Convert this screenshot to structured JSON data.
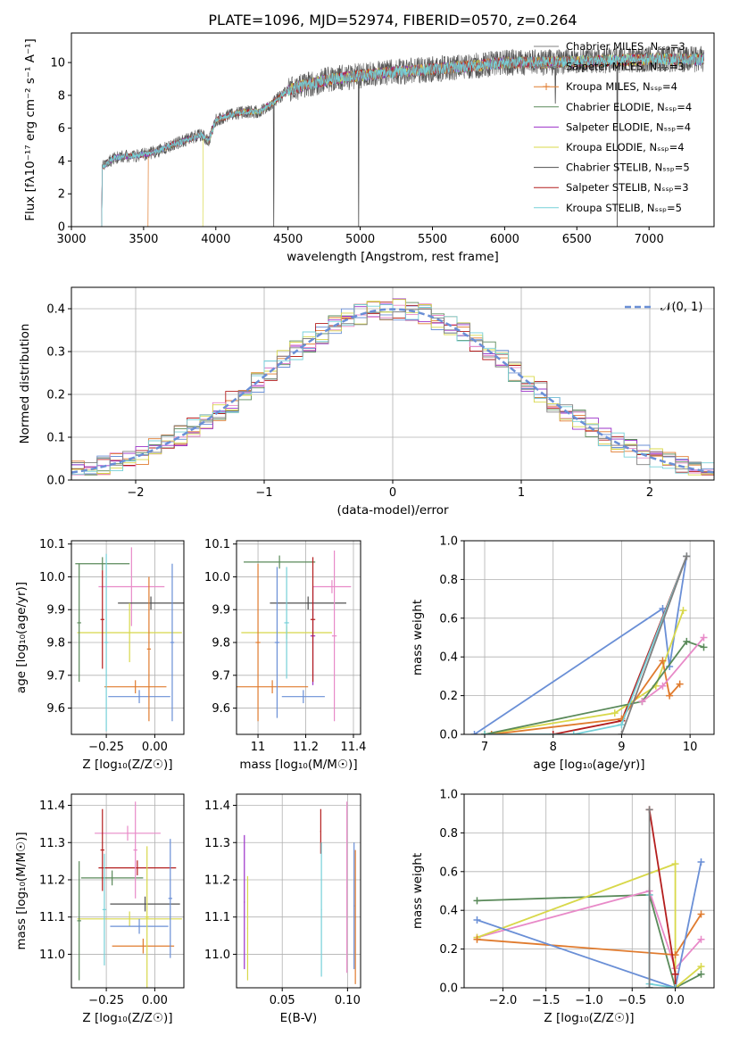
{
  "chart_data": [
    {
      "id": "spectrum",
      "type": "line",
      "title": "PLATE=1096, MJD=52974, FIBERID=0570, z=0.264",
      "xlabel": "wavelength [Angstrom, rest frame]",
      "ylabel": "Flux [fλ10⁻¹⁷ erg cm⁻² s⁻¹ A⁻¹]",
      "xlim": [
        3000,
        7450
      ],
      "ylim": [
        0,
        11.8
      ],
      "xticks": [
        3000,
        3500,
        4000,
        4500,
        5000,
        5500,
        6000,
        6500,
        7000
      ],
      "yticks": [
        0,
        2,
        4,
        6,
        8,
        10
      ],
      "grid": false,
      "legend_position": "upper-right",
      "continuum_knots": [
        [
          3210,
          3.6
        ],
        [
          3300,
          4.2
        ],
        [
          3400,
          4.3
        ],
        [
          3500,
          4.4
        ],
        [
          3600,
          4.6
        ],
        [
          3700,
          5.0
        ],
        [
          3800,
          5.3
        ],
        [
          3900,
          5.6
        ],
        [
          3950,
          5.2
        ],
        [
          4000,
          6.5
        ],
        [
          4100,
          6.8
        ],
        [
          4200,
          7.0
        ],
        [
          4300,
          7.0
        ],
        [
          4400,
          7.6
        ],
        [
          4500,
          8.3
        ],
        [
          4600,
          8.6
        ],
        [
          4800,
          9.0
        ],
        [
          5000,
          9.2
        ],
        [
          5200,
          9.4
        ],
        [
          5500,
          9.6
        ],
        [
          5800,
          9.8
        ],
        [
          6000,
          10.0
        ],
        [
          6300,
          10.0
        ],
        [
          6600,
          10.1
        ],
        [
          7000,
          10.2
        ],
        [
          7380,
          10.2
        ]
      ],
      "spikes": [
        [
          3210,
          0
        ],
        [
          4400,
          0
        ],
        [
          4990,
          0
        ],
        [
          6780,
          0
        ],
        [
          6350,
          7.5
        ]
      ],
      "cutoffs": [
        3210,
        3210,
        3530,
        3210,
        3210,
        3910,
        3210,
        3210,
        3210
      ],
      "series": [
        {
          "name": "Chabrier MILES, Nₛₛₚ=3",
          "color": "#808080"
        },
        {
          "name": "Salpeter MILES, Nₛₛₚ=3",
          "color": "#808080"
        },
        {
          "name": "Kroupa MILES, Nₛₛₚ=4",
          "color": "#e07b2e"
        },
        {
          "name": "Chabrier ELODIE, Nₛₛₚ=4",
          "color": "#5a8a5a"
        },
        {
          "name": "Salpeter ELODIE, Nₛₛₚ=4",
          "color": "#9b30c8"
        },
        {
          "name": "Kroupa ELODIE, Nₛₛₚ=4",
          "color": "#d8d84a"
        },
        {
          "name": "Chabrier STELIB, Nₛₛₚ=5",
          "color": "#505050"
        },
        {
          "name": "Salpeter STELIB, Nₛₛₚ=3",
          "color": "#b41e1e"
        },
        {
          "name": "Kroupa STELIB, Nₛₛₚ=5",
          "color": "#76d0d8"
        }
      ]
    },
    {
      "id": "residuals",
      "type": "line",
      "xlabel": "(data-model)/error",
      "ylabel": "Normed distribution",
      "xlim": [
        -2.5,
        2.5
      ],
      "ylim": [
        0,
        0.45
      ],
      "xticks": [
        -2,
        -1,
        0,
        1,
        2
      ],
      "yticks": [
        0.0,
        0.1,
        0.2,
        0.3,
        0.4
      ],
      "grid": true,
      "legend_position": "upper-right",
      "gaussian": {
        "name": "𝒩(0, 1)",
        "color": "#6a8fd6",
        "mean": 0,
        "sigma": 1
      },
      "bin_width": 0.1,
      "histogram_colors": [
        "#6a8fd6",
        "#e07b2e",
        "#5a8a5a",
        "#b41e1e",
        "#9b30c8",
        "#e88ac8",
        "#d8d84a",
        "#76d0d8",
        "#808080"
      ]
    },
    {
      "id": "age_vs_Z",
      "type": "scatter",
      "xlabel": "Z [log₁₀(Z/Z☉)]",
      "ylabel": "age  [log₁₀(age/yr)]",
      "xlim": [
        -0.43,
        0.15
      ],
      "ylim": [
        9.52,
        10.11
      ],
      "xticks": [
        -0.25,
        0.0
      ],
      "yticks": [
        9.6,
        9.7,
        9.8,
        9.9,
        10.0,
        10.1
      ],
      "grid": true,
      "points": [
        {
          "x": -0.27,
          "xerr": 0.14,
          "y": 10.04,
          "yerr": 0.02,
          "color": "#5a8a5a"
        },
        {
          "x": -0.12,
          "xerr": 0.17,
          "y": 9.97,
          "yerr": 0.12,
          "color": "#e88ac8"
        },
        {
          "x": -0.02,
          "xerr": 0.17,
          "y": 9.92,
          "yerr": 0.02,
          "color": "#505050"
        },
        {
          "x": -0.13,
          "xerr": 0.27,
          "y": 9.83,
          "yerr": 0.09,
          "color": "#d8d84a"
        },
        {
          "x": -0.1,
          "xerr": 0.16,
          "y": 9.665,
          "yerr": 0.02,
          "color": "#e07b2e"
        },
        {
          "x": -0.08,
          "xerr": 0.16,
          "y": 9.635,
          "yerr": 0.02,
          "color": "#6a8fd6"
        },
        {
          "x": -0.39,
          "xerr": 0.01,
          "y": 9.86,
          "yerr": 0.18,
          "color": "#5a8a5a"
        },
        {
          "x": -0.27,
          "xerr": 0.01,
          "y": 9.87,
          "yerr": 0.15,
          "color": "#b41e1e"
        },
        {
          "x": -0.25,
          "xerr": 0.01,
          "y": 9.8,
          "yerr": 0.27,
          "color": "#76d0d8"
        },
        {
          "x": -0.03,
          "xerr": 0.01,
          "y": 9.78,
          "yerr": 0.22,
          "color": "#e07b2e"
        },
        {
          "x": 0.09,
          "xerr": 0.01,
          "y": 9.8,
          "yerr": 0.24,
          "color": "#6a8fd6"
        }
      ]
    },
    {
      "id": "age_vs_mass",
      "type": "scatter",
      "xlabel": "mass [log₁₀(M/M☉)]",
      "ylabel": "",
      "xlim": [
        10.91,
        11.43
      ],
      "ylim": [
        9.52,
        10.11
      ],
      "xticks": [
        11.0,
        11.2,
        11.4
      ],
      "yticks": [
        9.6,
        9.7,
        9.8,
        9.9,
        10.0,
        10.1
      ],
      "grid": true,
      "points": [
        {
          "x": 11.09,
          "xerr": 0.15,
          "y": 10.045,
          "yerr": 0.02,
          "color": "#5a8a5a"
        },
        {
          "x": 11.31,
          "xerr": 0.08,
          "y": 9.97,
          "yerr": 0.02,
          "color": "#e88ac8"
        },
        {
          "x": 11.21,
          "xerr": 0.16,
          "y": 9.92,
          "yerr": 0.02,
          "color": "#505050"
        },
        {
          "x": 11.12,
          "xerr": 0.19,
          "y": 9.83,
          "yerr": 0.02,
          "color": "#d8d84a"
        },
        {
          "x": 11.06,
          "xerr": 0.15,
          "y": 9.665,
          "yerr": 0.02,
          "color": "#e07b2e"
        },
        {
          "x": 11.19,
          "xerr": 0.09,
          "y": 9.635,
          "yerr": 0.02,
          "color": "#6a8fd6"
        },
        {
          "x": 11.0,
          "xerr": 0.01,
          "y": 9.8,
          "yerr": 0.24,
          "color": "#e07b2e"
        },
        {
          "x": 11.08,
          "xerr": 0.01,
          "y": 9.8,
          "yerr": 0.23,
          "color": "#6a8fd6"
        },
        {
          "x": 11.12,
          "xerr": 0.01,
          "y": 9.86,
          "yerr": 0.17,
          "color": "#76d0d8"
        },
        {
          "x": 11.23,
          "xerr": 0.01,
          "y": 9.82,
          "yerr": 0.15,
          "color": "#9b30c8"
        },
        {
          "x": 11.23,
          "xerr": 0.01,
          "y": 9.87,
          "yerr": 0.19,
          "color": "#b41e1e"
        },
        {
          "x": 11.32,
          "xerr": 0.01,
          "y": 9.82,
          "yerr": 0.26,
          "color": "#e88ac8"
        }
      ]
    },
    {
      "id": "weight_vs_age",
      "type": "line",
      "xlabel": "age  [log₁₀(age/yr)]",
      "ylabel": "mass weight",
      "xlim": [
        6.7,
        10.35
      ],
      "ylim": [
        0,
        1.0
      ],
      "xticks": [
        7,
        8,
        9,
        10
      ],
      "yticks": [
        0.0,
        0.2,
        0.4,
        0.6,
        0.8,
        1.0
      ],
      "grid": true,
      "series": [
        {
          "color": "#6a8fd6",
          "points": [
            [
              6.85,
              0.0
            ],
            [
              9.6,
              0.65
            ],
            [
              9.7,
              0.35
            ],
            [
              9.95,
              0.92
            ]
          ]
        },
        {
          "color": "#b41e1e",
          "points": [
            [
              8.0,
              0.0
            ],
            [
              9.0,
              0.07
            ],
            [
              9.95,
              0.92
            ]
          ]
        },
        {
          "color": "#d8d84a",
          "points": [
            [
              7.0,
              0.0
            ],
            [
              8.9,
              0.11
            ],
            [
              9.5,
              0.25
            ],
            [
              9.9,
              0.64
            ]
          ]
        },
        {
          "color": "#e07b2e",
          "points": [
            [
              7.1,
              0.0
            ],
            [
              9.0,
              0.08
            ],
            [
              9.6,
              0.38
            ],
            [
              9.7,
              0.2
            ],
            [
              9.85,
              0.26
            ]
          ]
        },
        {
          "color": "#5a8a5a",
          "points": [
            [
              7.0,
              0.0
            ],
            [
              9.3,
              0.17
            ],
            [
              9.95,
              0.48
            ],
            [
              10.2,
              0.45
            ]
          ]
        },
        {
          "color": "#e88ac8",
          "points": [
            [
              9.3,
              0.17
            ],
            [
              9.6,
              0.25
            ],
            [
              10.2,
              0.5
            ]
          ]
        },
        {
          "color": "#76d0d8",
          "points": [
            [
              7.0,
              0.0
            ],
            [
              8.3,
              0.0
            ],
            [
              9.0,
              0.05
            ],
            [
              9.95,
              0.92
            ]
          ]
        },
        {
          "color": "#808080",
          "points": [
            [
              9.0,
              0.0
            ],
            [
              9.95,
              0.92
            ]
          ]
        }
      ]
    },
    {
      "id": "mass_vs_Z",
      "type": "scatter",
      "xlabel": "Z [log₁₀(Z/Z☉)]",
      "ylabel": "mass [log₁₀(M/M☉)]",
      "xlim": [
        -0.43,
        0.15
      ],
      "ylim": [
        10.91,
        11.43
      ],
      "xticks": [
        -0.25,
        0.0
      ],
      "yticks": [
        11.0,
        11.1,
        11.2,
        11.3,
        11.4
      ],
      "grid": true,
      "points": [
        {
          "x": -0.14,
          "xerr": 0.17,
          "y": 11.325,
          "yerr": 0.02,
          "color": "#e88ac8"
        },
        {
          "x": -0.09,
          "xerr": 0.2,
          "y": 11.232,
          "yerr": 0.02,
          "color": "#b41e1e"
        },
        {
          "x": -0.22,
          "xerr": 0.16,
          "y": 11.205,
          "yerr": 0.02,
          "color": "#5a8a5a"
        },
        {
          "x": -0.05,
          "xerr": 0.18,
          "y": 11.135,
          "yerr": 0.02,
          "color": "#505050"
        },
        {
          "x": -0.13,
          "xerr": 0.27,
          "y": 11.095,
          "yerr": 0.02,
          "color": "#d8d84a"
        },
        {
          "x": -0.08,
          "xerr": 0.15,
          "y": 11.075,
          "yerr": 0.02,
          "color": "#6a8fd6"
        },
        {
          "x": -0.06,
          "xerr": 0.16,
          "y": 11.022,
          "yerr": 0.02,
          "color": "#e07b2e"
        },
        {
          "x": -0.39,
          "xerr": 0.01,
          "y": 11.09,
          "yerr": 0.16,
          "color": "#5a8a5a"
        },
        {
          "x": -0.27,
          "xerr": 0.01,
          "y": 11.28,
          "yerr": 0.11,
          "color": "#b41e1e"
        },
        {
          "x": -0.26,
          "xerr": 0.01,
          "y": 11.12,
          "yerr": 0.15,
          "color": "#76d0d8"
        },
        {
          "x": -0.1,
          "xerr": 0.01,
          "y": 11.28,
          "yerr": 0.13,
          "color": "#e88ac8"
        },
        {
          "x": -0.04,
          "xerr": 0.01,
          "y": 11.1,
          "yerr": 0.19,
          "color": "#d8d84a"
        },
        {
          "x": 0.08,
          "xerr": 0.01,
          "y": 11.15,
          "yerr": 0.16,
          "color": "#6a8fd6"
        }
      ]
    },
    {
      "id": "mass_vs_EBV",
      "type": "scatter",
      "xlabel": "E(B-V)",
      "ylabel": "",
      "xlim": [
        0.015,
        0.11
      ],
      "ylim": [
        10.91,
        11.43
      ],
      "xticks": [
        0.05,
        0.1
      ],
      "yticks": [
        11.0,
        11.1,
        11.2,
        11.3,
        11.4
      ],
      "grid": true,
      "points": [
        {
          "x": 0.021,
          "xerr": 0.0004,
          "y": 11.14,
          "yerr": 0.18,
          "color": "#9b30c8"
        },
        {
          "x": 0.0235,
          "xerr": 0.0004,
          "y": 11.07,
          "yerr": 0.14,
          "color": "#d8d84a"
        },
        {
          "x": 0.0795,
          "xerr": 0.0004,
          "y": 11.33,
          "yerr": 0.06,
          "color": "#b41e1e"
        },
        {
          "x": 0.08,
          "xerr": 0.0004,
          "y": 11.12,
          "yerr": 0.18,
          "color": "#76d0d8"
        },
        {
          "x": 0.0995,
          "xerr": 0.0004,
          "y": 11.18,
          "yerr": 0.23,
          "color": "#e88ac8"
        },
        {
          "x": 0.105,
          "xerr": 0.0004,
          "y": 11.13,
          "yerr": 0.17,
          "color": "#6a8fd6"
        },
        {
          "x": 0.106,
          "xerr": 0.0004,
          "y": 11.1,
          "yerr": 0.18,
          "color": "#e07b2e"
        }
      ]
    },
    {
      "id": "weight_vs_Z",
      "type": "line",
      "xlabel": "Z [log₁₀(Z/Z☉)]",
      "ylabel": "mass weight",
      "xlim": [
        -2.45,
        0.45
      ],
      "ylim": [
        0,
        1.0
      ],
      "xticks": [
        -2.0,
        -1.5,
        -1.0,
        -0.5,
        0.0
      ],
      "yticks": [
        0.0,
        0.2,
        0.4,
        0.6,
        0.8,
        1.0
      ],
      "grid": true,
      "series": [
        {
          "color": "#5a8a5a",
          "points": [
            [
              -2.3,
              0.45
            ],
            [
              -0.3,
              0.48
            ],
            [
              0.0,
              0.0
            ],
            [
              0.3,
              0.07
            ]
          ]
        },
        {
          "color": "#e88ac8",
          "points": [
            [
              -2.3,
              0.26
            ],
            [
              -0.3,
              0.5
            ],
            [
              0.0,
              0.1
            ],
            [
              0.3,
              0.25
            ]
          ]
        },
        {
          "color": "#d8d84a",
          "points": [
            [
              -2.3,
              0.26
            ],
            [
              0.0,
              0.64
            ],
            [
              0.0,
              0.0
            ],
            [
              0.3,
              0.11
            ]
          ]
        },
        {
          "color": "#e07b2e",
          "points": [
            [
              -2.3,
              0.25
            ],
            [
              0.0,
              0.17
            ],
            [
              0.3,
              0.38
            ]
          ]
        },
        {
          "color": "#6a8fd6",
          "points": [
            [
              -2.3,
              0.35
            ],
            [
              0.0,
              0.0
            ],
            [
              0.3,
              0.65
            ]
          ]
        },
        {
          "color": "#b41e1e",
          "points": [
            [
              -0.3,
              0.92
            ],
            [
              0.0,
              0.07
            ],
            [
              0.0,
              0.0
            ]
          ]
        },
        {
          "color": "#76d0d8",
          "points": [
            [
              -0.3,
              0.0
            ],
            [
              -0.3,
              0.48
            ],
            [
              -0.3,
              0.02
            ],
            [
              0.0,
              0.0
            ]
          ]
        },
        {
          "color": "#808080",
          "points": [
            [
              -0.3,
              0.92
            ],
            [
              -0.3,
              0.0
            ]
          ]
        }
      ]
    }
  ]
}
